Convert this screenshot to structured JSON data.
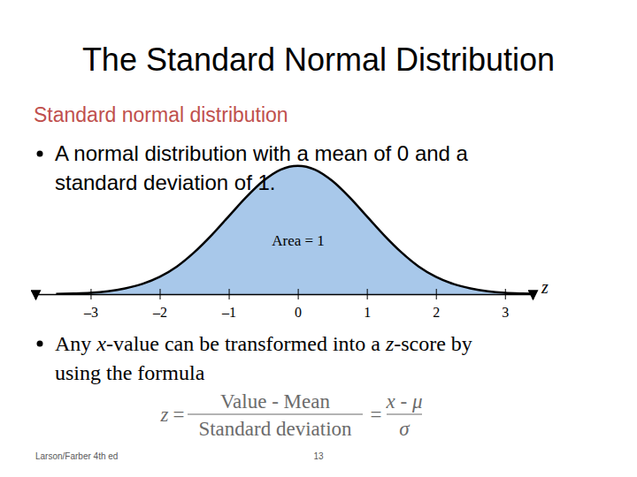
{
  "chart_data": {
    "type": "area",
    "x": [
      -3.5,
      -3.25,
      -3,
      -2.75,
      -2.5,
      -2.25,
      -2,
      -1.75,
      -1.5,
      -1.25,
      -1,
      -0.75,
      -0.5,
      -0.25,
      0,
      0.25,
      0.5,
      0.75,
      1,
      1.25,
      1.5,
      1.75,
      2,
      2.25,
      2.5,
      2.75,
      3,
      3.25,
      3.5
    ],
    "values": [
      0.001,
      0.002,
      0.004,
      0.009,
      0.018,
      0.032,
      0.054,
      0.086,
      0.13,
      0.183,
      0.242,
      0.301,
      0.352,
      0.387,
      0.399,
      0.387,
      0.352,
      0.301,
      0.242,
      0.183,
      0.13,
      0.086,
      0.054,
      0.032,
      0.018,
      0.009,
      0.004,
      0.002,
      0.001
    ],
    "color": "#a8c8ea",
    "xlim": [
      -3.8,
      3.4
    ],
    "ylim": [
      0,
      0.42
    ],
    "xticks": [
      {
        "value": -3,
        "label": "–3"
      },
      {
        "value": -2,
        "label": "–2"
      },
      {
        "value": -1,
        "label": "–1"
      },
      0,
      1,
      2,
      3
    ],
    "xlabel": "z",
    "annotation": "Area = 1",
    "tick_labels": "x",
    "grid": false
  },
  "slide": {
    "title": "The Standard Normal Distribution",
    "heading": "Standard normal distribution",
    "bullets": [
      {
        "lines": [
          "A normal distribution with a mean of 0 and a",
          "standard deviation of 1."
        ]
      },
      {
        "lines": [
          "Any x-value can be transformed into a z-score by",
          "using the formula"
        ]
      }
    ],
    "formula": {
      "lhs": "z",
      "equals": "=",
      "numerator": "Value - Mean",
      "denominator": "Standard deviation",
      "symbolic_numerator": "x - μ",
      "symbolic_denominator": "σ"
    },
    "footer": {
      "source": "Larson/Farber 4th ed",
      "page": 13
    }
  }
}
